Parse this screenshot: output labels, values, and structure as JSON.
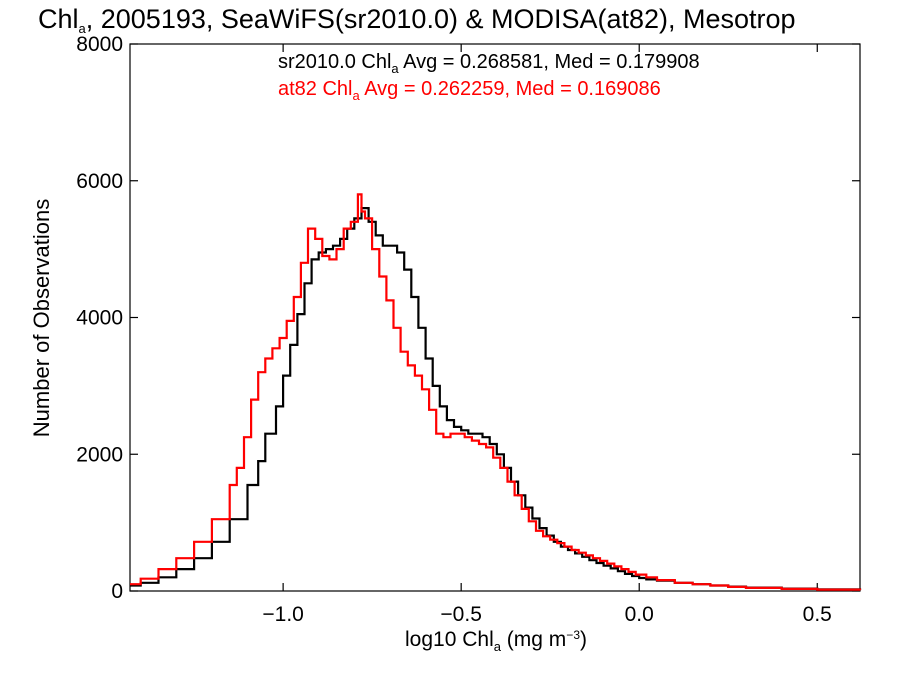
{
  "title": {
    "pre": "Chl",
    "sub": "a",
    "post": ", 2005193, SeaWiFS(sr2010.0) & MODISA(at82), Mesotrop"
  },
  "xlabel": {
    "pre": "log10 Chl",
    "sub": "a",
    "mid": " (mg m",
    "sup": "−3",
    "post": ")"
  },
  "ylabel": "Number of Observations",
  "legend": [
    {
      "pre": "sr2010.0 Chl",
      "sub": "a",
      "post": " Avg = 0.268581, Med = 0.179908",
      "color": "#000000"
    },
    {
      "pre": "at82 Chl",
      "sub": "a",
      "post": " Avg = 0.262259, Med = 0.169086",
      "color": "#ff0000"
    }
  ],
  "chart_data": {
    "type": "line",
    "step": true,
    "xlim": [
      -1.43,
      0.62
    ],
    "ylim": [
      0,
      8000
    ],
    "xticks": [
      -1.0,
      -0.5,
      0.0,
      0.5
    ],
    "xtick_labels": [
      "−1.0",
      "−0.5",
      "0.0",
      "0.5"
    ],
    "yticks": [
      0,
      2000,
      4000,
      6000,
      8000
    ],
    "ytick_labels": [
      "0",
      "2000",
      "4000",
      "6000",
      "8000"
    ],
    "grid": false,
    "legend_position": "top",
    "series": [
      {
        "name": "sr2010.0",
        "color": "#000000",
        "x": [
          -1.43,
          -1.4,
          -1.35,
          -1.3,
          -1.25,
          -1.2,
          -1.15,
          -1.1,
          -1.07,
          -1.05,
          -1.02,
          -1.0,
          -0.98,
          -0.96,
          -0.94,
          -0.92,
          -0.9,
          -0.88,
          -0.86,
          -0.84,
          -0.82,
          -0.8,
          -0.78,
          -0.76,
          -0.74,
          -0.72,
          -0.7,
          -0.68,
          -0.66,
          -0.64,
          -0.62,
          -0.6,
          -0.58,
          -0.56,
          -0.54,
          -0.52,
          -0.5,
          -0.48,
          -0.46,
          -0.44,
          -0.42,
          -0.4,
          -0.38,
          -0.36,
          -0.34,
          -0.32,
          -0.3,
          -0.28,
          -0.26,
          -0.24,
          -0.22,
          -0.2,
          -0.18,
          -0.16,
          -0.14,
          -0.12,
          -0.1,
          -0.08,
          -0.06,
          -0.04,
          -0.02,
          0.0,
          0.02,
          0.05,
          0.1,
          0.15,
          0.2,
          0.25,
          0.3,
          0.4,
          0.5,
          0.62
        ],
        "y": [
          80,
          120,
          200,
          320,
          480,
          720,
          1050,
          1550,
          1900,
          2300,
          2700,
          3150,
          3600,
          4050,
          4500,
          4850,
          4950,
          5000,
          5050,
          5150,
          5300,
          5450,
          5600,
          5400,
          5200,
          5050,
          5050,
          4950,
          4700,
          4300,
          3850,
          3400,
          3000,
          2700,
          2500,
          2400,
          2350,
          2300,
          2300,
          2250,
          2150,
          2000,
          1800,
          1600,
          1400,
          1220,
          1060,
          920,
          810,
          720,
          650,
          600,
          550,
          500,
          450,
          410,
          370,
          330,
          290,
          250,
          220,
          190,
          170,
          150,
          120,
          100,
          80,
          65,
          50,
          35,
          25,
          15
        ]
      },
      {
        "name": "at82",
        "color": "#ff0000",
        "x": [
          -1.43,
          -1.4,
          -1.35,
          -1.3,
          -1.25,
          -1.2,
          -1.15,
          -1.13,
          -1.11,
          -1.09,
          -1.07,
          -1.05,
          -1.03,
          -1.01,
          -0.99,
          -0.97,
          -0.95,
          -0.93,
          -0.91,
          -0.89,
          -0.87,
          -0.85,
          -0.83,
          -0.81,
          -0.79,
          -0.78,
          -0.77,
          -0.75,
          -0.73,
          -0.71,
          -0.69,
          -0.67,
          -0.65,
          -0.63,
          -0.61,
          -0.59,
          -0.57,
          -0.55,
          -0.53,
          -0.51,
          -0.49,
          -0.47,
          -0.45,
          -0.43,
          -0.41,
          -0.39,
          -0.37,
          -0.35,
          -0.33,
          -0.31,
          -0.29,
          -0.27,
          -0.25,
          -0.23,
          -0.21,
          -0.19,
          -0.17,
          -0.15,
          -0.13,
          -0.11,
          -0.09,
          -0.07,
          -0.05,
          -0.03,
          -0.01,
          0.02,
          0.05,
          0.1,
          0.15,
          0.2,
          0.25,
          0.3,
          0.4,
          0.5,
          0.62
        ],
        "y": [
          100,
          180,
          320,
          480,
          720,
          1050,
          1550,
          1800,
          2250,
          2800,
          3200,
          3400,
          3550,
          3700,
          3950,
          4300,
          4800,
          5300,
          5150,
          4900,
          4850,
          5000,
          5300,
          5400,
          5800,
          5550,
          5450,
          5000,
          4600,
          4250,
          3850,
          3500,
          3300,
          3150,
          2950,
          2650,
          2300,
          2250,
          2300,
          2300,
          2250,
          2200,
          2150,
          2100,
          1950,
          1800,
          1600,
          1400,
          1200,
          1020,
          880,
          800,
          750,
          700,
          650,
          600,
          560,
          520,
          480,
          440,
          400,
          360,
          320,
          280,
          240,
          200,
          160,
          120,
          100,
          80,
          60,
          45,
          30,
          20,
          12
        ]
      }
    ]
  }
}
